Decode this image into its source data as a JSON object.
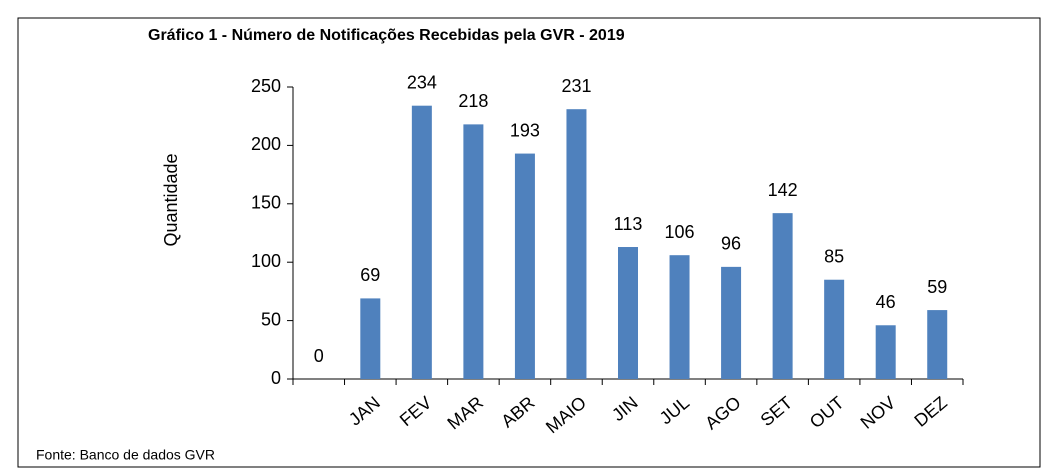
{
  "chart_data": {
    "type": "bar",
    "title": "Gráfico 1 - Número de Notificações Recebidas pela GVR - 2019",
    "y_label": "Quantidade",
    "source": "Fonte: Banco de dados GVR",
    "categories": [
      null,
      "JAN",
      "FEV",
      "MAR",
      "ABR",
      "MAIO",
      "JIN",
      "JUL",
      "AGO",
      "SET",
      "OUT",
      "NOV",
      "DEZ"
    ],
    "values": [
      0,
      69,
      234,
      218,
      193,
      231,
      113,
      106,
      96,
      142,
      85,
      46,
      59
    ],
    "color": "#4f81bd",
    "ylim": [
      0,
      250
    ],
    "yticks": [
      0,
      50,
      100,
      150,
      200,
      250
    ],
    "grid": false
  }
}
